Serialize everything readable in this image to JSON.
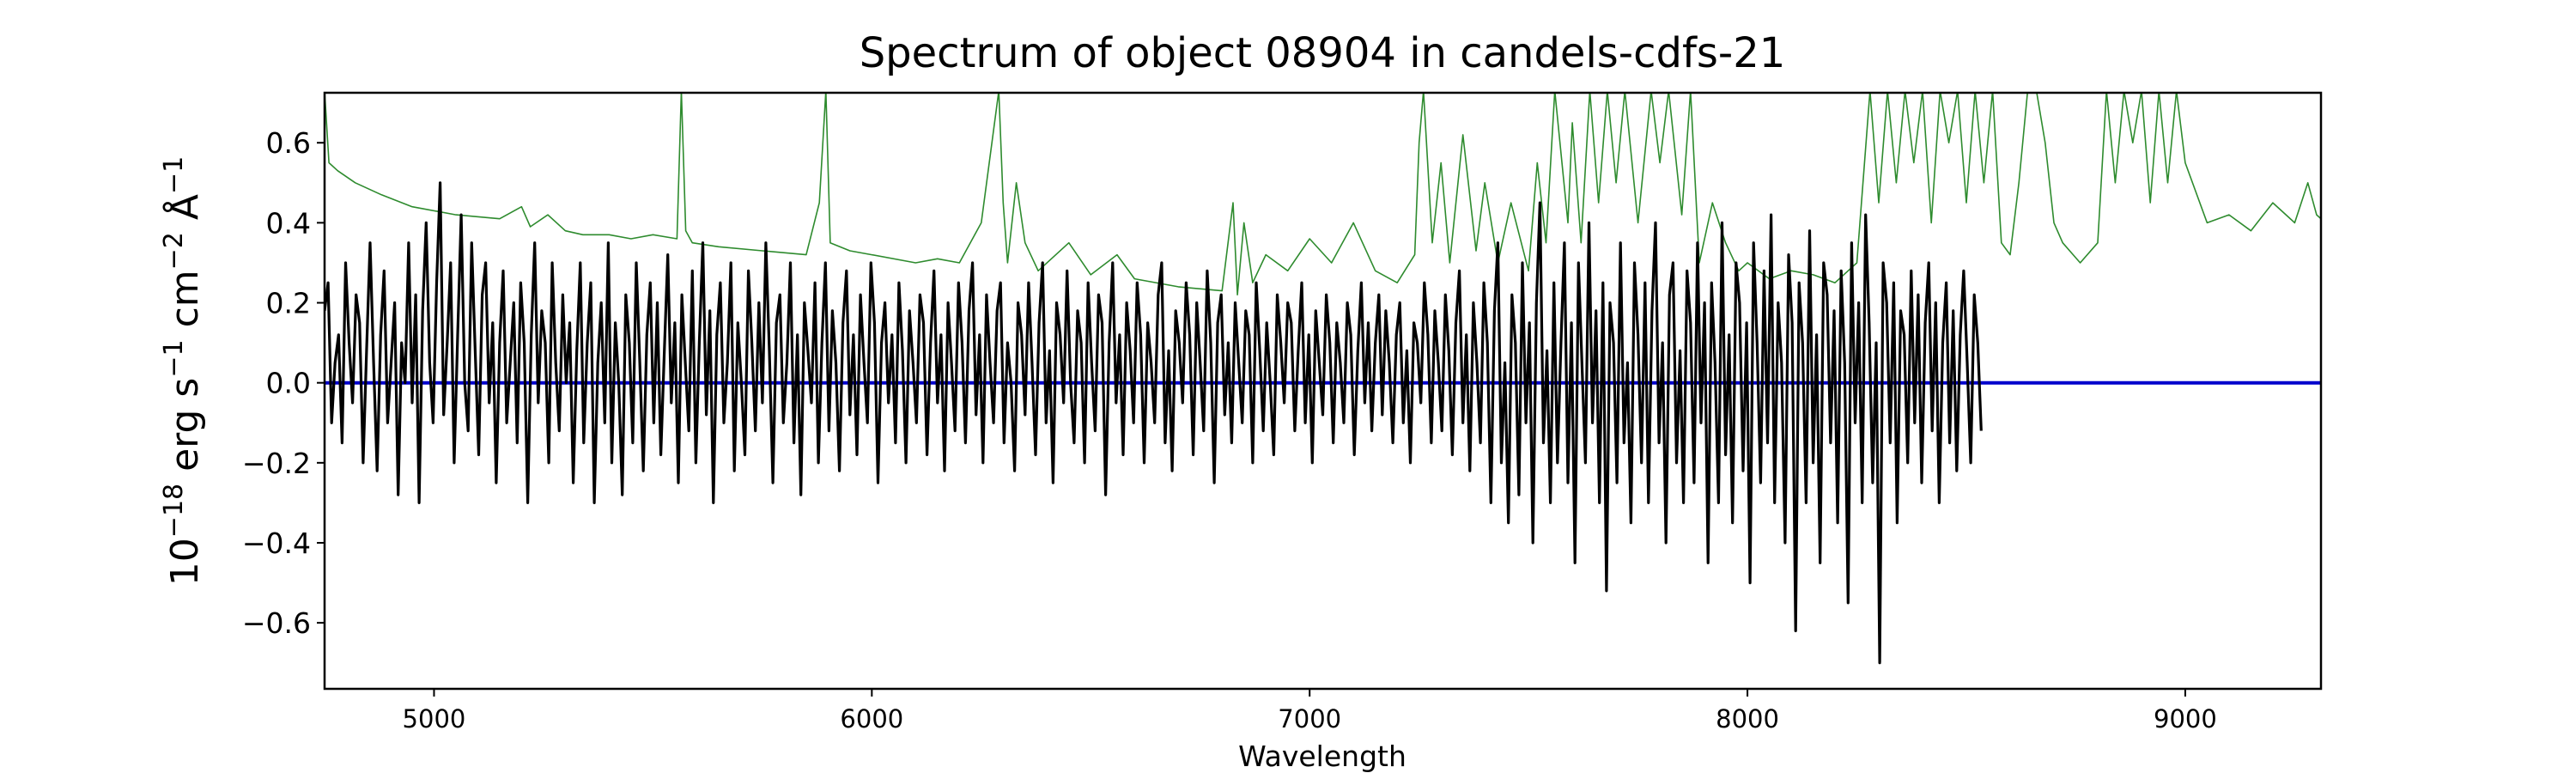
{
  "chart_data": {
    "type": "line",
    "title": "Spectrum of object 08904 in candels-cdfs-21",
    "xlabel": "Wavelength",
    "ylabel_parts": [
      "10",
      "−18",
      " erg s",
      "−1",
      " cm",
      "−2",
      " Å",
      "−1"
    ],
    "xlim": [
      4750,
      9310
    ],
    "ylim": [
      -0.765,
      0.725
    ],
    "xticks": [
      5000,
      6000,
      7000,
      8000,
      9000
    ],
    "xtick_labels": [
      "5000",
      "6000",
      "7000",
      "8000",
      "9000"
    ],
    "yticks": [
      -0.6,
      -0.4,
      -0.2,
      0.0,
      0.2,
      0.4,
      0.6
    ],
    "ytick_labels": [
      "−0.6",
      "−0.4",
      "−0.2",
      "0.0",
      "0.2",
      "0.4",
      "0.6"
    ],
    "grid": false,
    "legend": false,
    "colors": {
      "flux": "#000000",
      "error": "#2e8b2e",
      "zero": "#0000cc"
    },
    "series": [
      {
        "key": "flux",
        "x_start": 4750,
        "x_step": 8,
        "y": [
          0.18,
          0.25,
          -0.1,
          0.05,
          0.12,
          -0.15,
          0.3,
          0.1,
          -0.05,
          0.22,
          0.15,
          -0.2,
          0.08,
          0.35,
          0.05,
          -0.22,
          0.12,
          0.28,
          -0.1,
          0.05,
          0.2,
          -0.28,
          0.1,
          0.0,
          0.35,
          -0.05,
          0.22,
          -0.3,
          0.18,
          0.4,
          0.05,
          -0.1,
          0.25,
          0.5,
          -0.08,
          0.1,
          0.3,
          -0.2,
          0.12,
          0.42,
          0.0,
          -0.12,
          0.35,
          0.08,
          -0.18,
          0.22,
          0.3,
          -0.05,
          0.15,
          -0.25,
          0.1,
          0.28,
          -0.1,
          0.05,
          0.2,
          -0.15,
          0.25,
          0.1,
          -0.3,
          0.12,
          0.35,
          -0.05,
          0.18,
          0.1,
          -0.2,
          0.3,
          0.05,
          -0.12,
          0.22,
          0.0,
          0.15,
          -0.25,
          0.08,
          0.3,
          -0.15,
          0.1,
          0.25,
          -0.3,
          0.05,
          0.2,
          -0.1,
          0.35,
          -0.2,
          0.15,
          0.0,
          -0.28,
          0.22,
          0.1,
          -0.15,
          0.3,
          0.05,
          -0.22,
          0.12,
          0.25,
          -0.1,
          0.2,
          -0.18,
          0.08,
          0.32,
          -0.05,
          0.15,
          -0.25,
          0.22,
          0.05,
          -0.12,
          0.28,
          -0.2,
          0.1,
          0.35,
          -0.08,
          0.18,
          -0.3,
          0.12,
          0.25,
          -0.1,
          0.05,
          0.3,
          -0.22,
          0.15,
          0.0,
          -0.18,
          0.28,
          0.1,
          -0.12,
          0.2,
          -0.05,
          0.35,
          0.08,
          -0.25,
          0.15,
          0.22,
          -0.1,
          0.05,
          0.3,
          -0.15,
          0.12,
          -0.28,
          0.2,
          0.08,
          -0.05,
          0.25,
          -0.2,
          0.1,
          0.3,
          -0.12,
          0.18,
          0.05,
          -0.22,
          0.15,
          0.28,
          -0.08,
          0.12,
          -0.18,
          0.22,
          0.05,
          -0.1,
          0.3,
          0.15,
          -0.25,
          0.1,
          0.2,
          -0.05,
          0.12,
          -0.15,
          0.25,
          0.08,
          -0.2,
          0.18,
          0.05,
          -0.1,
          0.22,
          0.15,
          -0.18,
          0.1,
          0.28,
          -0.05,
          0.12,
          -0.22,
          0.2,
          0.05,
          -0.12,
          0.25,
          0.1,
          -0.15,
          0.18,
          0.3,
          -0.08,
          0.12,
          -0.2,
          0.22,
          0.05,
          -0.1,
          0.18,
          0.25,
          -0.15,
          0.1,
          0.0,
          -0.22,
          0.2,
          0.12,
          -0.08,
          0.25,
          0.05,
          -0.18,
          0.15,
          0.3,
          -0.1,
          0.08,
          -0.25,
          0.2,
          0.12,
          -0.05,
          0.28,
          0.0,
          -0.15,
          0.18,
          0.1,
          -0.2,
          0.25,
          0.05,
          -0.12,
          0.22,
          0.15,
          -0.28,
          0.1,
          0.3,
          -0.05,
          0.12,
          -0.18,
          0.2,
          0.08,
          -0.1,
          0.25,
          0.12,
          -0.2,
          0.15,
          0.05,
          -0.1,
          0.22,
          0.3,
          -0.15,
          0.08,
          -0.22,
          0.18,
          0.1,
          -0.05,
          0.25,
          0.12,
          -0.18,
          0.2,
          0.05,
          -0.12,
          0.28,
          0.1,
          -0.25,
          0.15,
          0.22,
          -0.08,
          0.1,
          -0.15,
          0.2,
          0.05,
          -0.1,
          0.18,
          0.12,
          -0.2,
          0.25,
          0.08,
          -0.12,
          0.15,
          0.0,
          -0.18,
          0.22,
          0.1,
          -0.05,
          0.2,
          0.15,
          -0.12,
          0.08,
          0.25,
          -0.1,
          0.12,
          -0.2,
          0.18,
          0.05,
          -0.08,
          0.22,
          0.1,
          -0.15,
          0.15,
          0.05,
          -0.1,
          0.2,
          0.12,
          -0.18,
          0.08,
          0.25,
          -0.05,
          0.15,
          -0.12,
          0.1,
          0.22,
          -0.08,
          0.18,
          0.05,
          -0.15,
          0.12,
          0.2,
          -0.1,
          0.08,
          -0.2,
          0.15,
          0.1,
          -0.05,
          0.25,
          0.12,
          -0.15,
          0.18,
          0.05,
          -0.12,
          0.22,
          0.08,
          -0.18,
          0.15,
          0.28,
          -0.1,
          0.12,
          -0.22,
          0.2,
          0.05,
          -0.15,
          0.25,
          0.1,
          -0.3,
          0.18,
          0.35,
          -0.2,
          0.05,
          -0.35,
          0.22,
          0.1,
          -0.28,
          0.3,
          -0.1,
          0.15,
          -0.4,
          0.2,
          0.45,
          -0.15,
          0.08,
          -0.3,
          0.25,
          -0.2,
          0.1,
          0.35,
          -0.25,
          0.15,
          -0.45,
          0.3,
          0.05,
          -0.2,
          0.4,
          -0.1,
          0.18,
          -0.3,
          0.25,
          -0.52,
          0.2,
          0.1,
          -0.25,
          0.35,
          -0.15,
          0.05,
          -0.35,
          0.3,
          0.12,
          -0.2,
          0.25,
          -0.3,
          0.18,
          0.4,
          -0.15,
          0.1,
          -0.4,
          0.22,
          0.3,
          -0.2,
          0.08,
          -0.3,
          0.28,
          0.15,
          -0.25,
          0.35,
          -0.1,
          0.2,
          -0.45,
          0.25,
          0.05,
          -0.3,
          0.4,
          -0.18,
          0.12,
          -0.35,
          0.3,
          0.2,
          -0.22,
          0.15,
          -0.5,
          0.35,
          0.1,
          -0.25,
          0.28,
          -0.15,
          0.42,
          -0.3,
          0.2,
          0.05,
          -0.4,
          0.32,
          0.15,
          -0.62,
          0.25,
          0.1,
          -0.3,
          0.38,
          -0.2,
          0.12,
          -0.45,
          0.3,
          0.22,
          -0.15,
          0.18,
          -0.35,
          0.28,
          0.05,
          -0.55,
          0.35,
          -0.1,
          0.2,
          -0.3,
          0.42,
          0.15,
          -0.25,
          0.1,
          -0.7,
          0.3,
          0.2,
          -0.15,
          0.25,
          -0.35,
          0.18,
          0.12,
          -0.2,
          0.28,
          -0.1,
          0.22,
          -0.25,
          0.15,
          0.3,
          -0.12,
          0.2,
          -0.3,
          0.1,
          0.25,
          -0.15,
          0.18,
          -0.22,
          0.12,
          0.28,
          0.05,
          -0.2,
          0.22,
          0.1,
          -0.12
        ]
      },
      {
        "key": "error",
        "x": [
          4750,
          4760,
          4780,
          4820,
          4880,
          4950,
          5050,
          5150,
          5200,
          5220,
          5260,
          5300,
          5340,
          5400,
          5450,
          5500,
          5555,
          5565,
          5575,
          5590,
          5650,
          5750,
          5850,
          5880,
          5895,
          5905,
          5950,
          6000,
          6100,
          6150,
          6200,
          6250,
          6290,
          6300,
          6310,
          6330,
          6350,
          6380,
          6450,
          6500,
          6560,
          6600,
          6700,
          6800,
          6825,
          6835,
          6850,
          6870,
          6900,
          6950,
          7000,
          7050,
          7100,
          7150,
          7200,
          7240,
          7250,
          7260,
          7280,
          7300,
          7320,
          7350,
          7380,
          7400,
          7430,
          7460,
          7500,
          7520,
          7540,
          7560,
          7590,
          7600,
          7620,
          7640,
          7660,
          7680,
          7700,
          7720,
          7750,
          7780,
          7800,
          7820,
          7850,
          7870,
          7890,
          7920,
          7950,
          7980,
          8000,
          8050,
          8100,
          8150,
          8200,
          8250,
          8280,
          8300,
          8320,
          8340,
          8360,
          8380,
          8400,
          8420,
          8440,
          8460,
          8480,
          8500,
          8520,
          8540,
          8560,
          8580,
          8600,
          8620,
          8640,
          8660,
          8680,
          8700,
          8720,
          8760,
          8800,
          8820,
          8840,
          8860,
          8880,
          8900,
          8920,
          8940,
          8960,
          8980,
          9000,
          9050,
          9100,
          9150,
          9200,
          9250,
          9280,
          9300,
          9310
        ],
        "y": [
          0.73,
          0.55,
          0.53,
          0.5,
          0.47,
          0.44,
          0.42,
          0.41,
          0.44,
          0.39,
          0.42,
          0.38,
          0.37,
          0.37,
          0.36,
          0.37,
          0.36,
          0.73,
          0.38,
          0.35,
          0.34,
          0.33,
          0.32,
          0.45,
          0.73,
          0.35,
          0.33,
          0.32,
          0.3,
          0.31,
          0.3,
          0.4,
          0.73,
          0.45,
          0.3,
          0.5,
          0.35,
          0.28,
          0.35,
          0.27,
          0.32,
          0.26,
          0.24,
          0.23,
          0.45,
          0.22,
          0.4,
          0.25,
          0.32,
          0.28,
          0.36,
          0.3,
          0.4,
          0.28,
          0.25,
          0.32,
          0.6,
          0.73,
          0.35,
          0.55,
          0.3,
          0.62,
          0.33,
          0.5,
          0.3,
          0.45,
          0.28,
          0.55,
          0.35,
          0.73,
          0.4,
          0.65,
          0.35,
          0.73,
          0.45,
          0.73,
          0.5,
          0.73,
          0.4,
          0.73,
          0.55,
          0.73,
          0.42,
          0.73,
          0.3,
          0.45,
          0.35,
          0.28,
          0.3,
          0.26,
          0.28,
          0.27,
          0.25,
          0.3,
          0.73,
          0.45,
          0.73,
          0.5,
          0.73,
          0.55,
          0.73,
          0.4,
          0.73,
          0.6,
          0.73,
          0.45,
          0.73,
          0.5,
          0.73,
          0.35,
          0.32,
          0.5,
          0.73,
          0.73,
          0.6,
          0.4,
          0.35,
          0.3,
          0.35,
          0.73,
          0.5,
          0.73,
          0.6,
          0.73,
          0.45,
          0.73,
          0.5,
          0.73,
          0.55,
          0.4,
          0.42,
          0.38,
          0.45,
          0.4,
          0.5,
          0.42,
          0.41
        ]
      },
      {
        "key": "zero",
        "x": [
          4750,
          9310
        ],
        "y": [
          0.0,
          0.0
        ]
      }
    ]
  }
}
